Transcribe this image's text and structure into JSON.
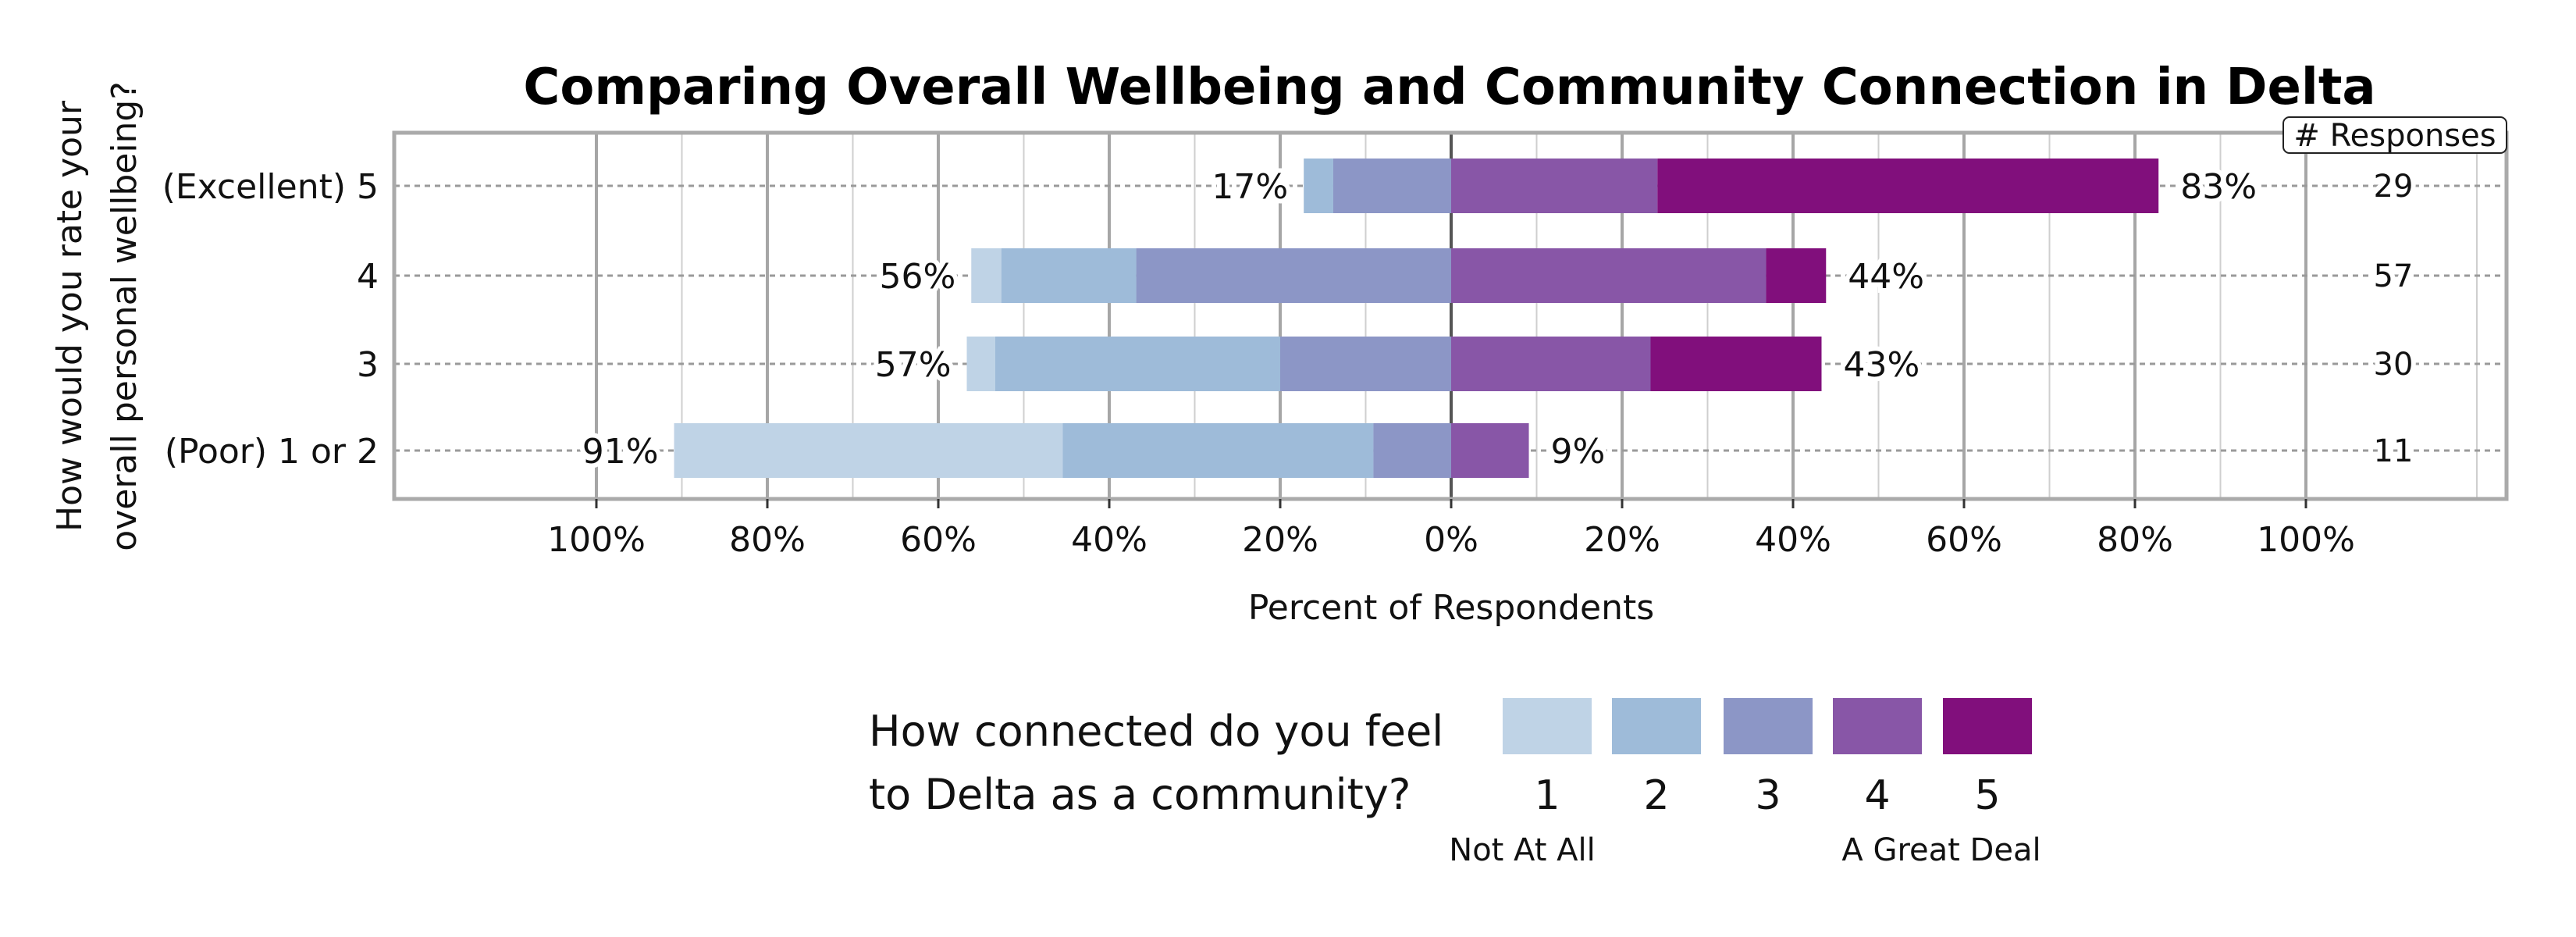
{
  "chart_data": {
    "type": "bar",
    "orientation": "horizontal-diverging-stacked",
    "title": "Comparing Overall Wellbeing and Community Connection in Delta",
    "ylabel_lines": [
      "How would you rate your",
      "overall personal wellbeing?"
    ],
    "xlabel": "Percent of Respondents",
    "xlim": [
      -100,
      100
    ],
    "xticks": [
      -100,
      -80,
      -60,
      -40,
      -20,
      0,
      20,
      40,
      60,
      80,
      100
    ],
    "xtick_labels": [
      "100%",
      "80%",
      "60%",
      "40%",
      "20%",
      "0%",
      "20%",
      "40%",
      "60%",
      "80%",
      "100%"
    ],
    "grid": true,
    "responses_header": "# Responses",
    "categories": [
      "(Excellent) 5",
      "4",
      "3",
      "(Poor) 1 or 2"
    ],
    "responses": [
      29,
      57,
      30,
      11
    ],
    "left_labels": [
      "17%",
      "56%",
      "57%",
      "91%"
    ],
    "right_labels": [
      "83%",
      "44%",
      "43%",
      "9%"
    ],
    "series": [
      {
        "name": "1",
        "side": "negative",
        "counts": [
          0,
          2,
          1,
          5
        ],
        "color": "#BFD3E6"
      },
      {
        "name": "2",
        "side": "negative",
        "counts": [
          1,
          9,
          10,
          4
        ],
        "color": "#9EBBD9"
      },
      {
        "name": "3",
        "side": "negative",
        "counts": [
          4,
          21,
          6,
          1
        ],
        "color": "#8C96C6"
      },
      {
        "name": "4",
        "side": "positive",
        "counts": [
          7,
          21,
          7,
          1
        ],
        "color": "#8856A7"
      },
      {
        "name": "5",
        "side": "positive",
        "counts": [
          17,
          4,
          6,
          0
        ],
        "color": "#810F7C"
      }
    ],
    "legend": {
      "title_lines": [
        "How connected do you feel",
        "to Delta as a community?"
      ],
      "low_label": "Not At All",
      "high_label": "A Great Deal",
      "placement": "bottom"
    }
  }
}
